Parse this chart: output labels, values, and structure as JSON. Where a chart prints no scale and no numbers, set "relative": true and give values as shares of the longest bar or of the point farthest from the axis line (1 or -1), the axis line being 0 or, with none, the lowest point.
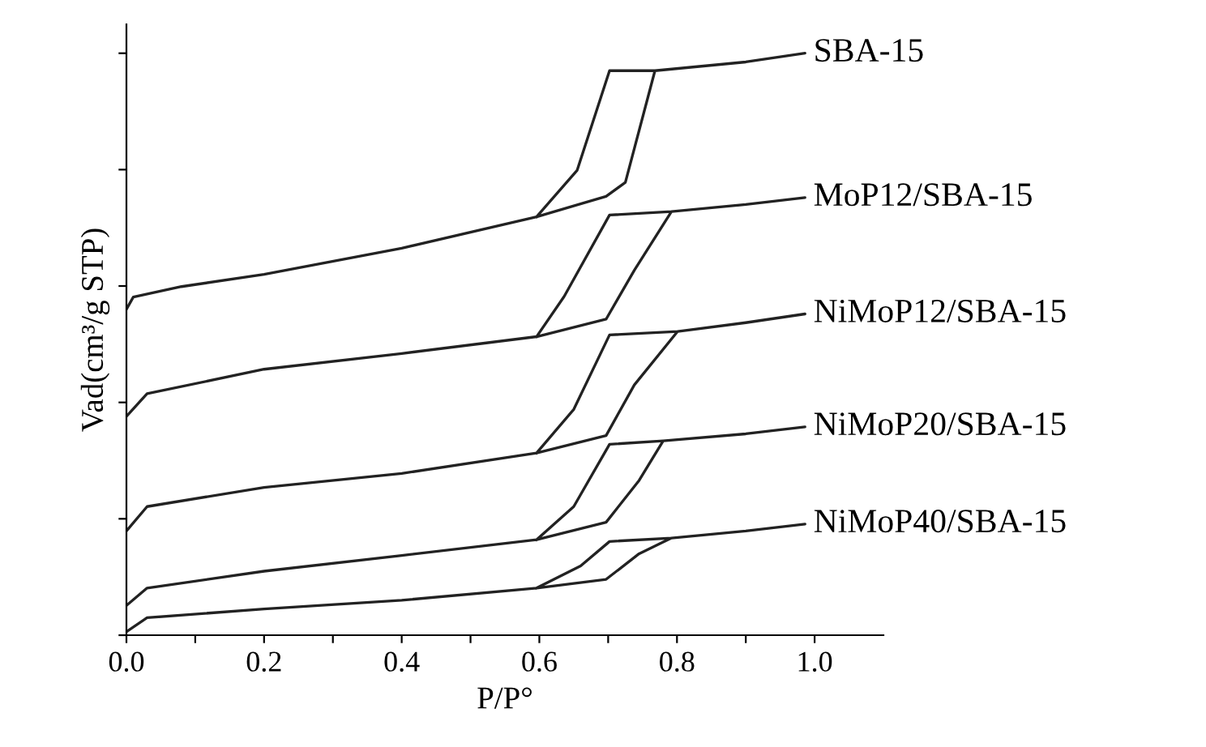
{
  "chart_data": {
    "type": "line",
    "relative": true,
    "xlabel": "P/P°",
    "ylabel": "Vad(cm³/g STP)",
    "xlim": [
      0,
      1.1
    ],
    "xticks": [
      {
        "value": 0,
        "label": "0.0"
      },
      {
        "value": 0.1,
        "label": null
      },
      {
        "value": 0.2,
        "label": "0.2"
      },
      {
        "value": 0.3,
        "label": null
      },
      {
        "value": 0.4,
        "label": "0.4"
      },
      {
        "value": 0.5,
        "label": null
      },
      {
        "value": 0.6,
        "label": "0.6"
      },
      {
        "value": 0.7,
        "label": null
      },
      {
        "value": 0.8,
        "label": "0.8"
      },
      {
        "value": 0.9,
        "label": null
      },
      {
        "value": 1.0,
        "label": "1.0"
      }
    ],
    "grid": false,
    "legend": false,
    "marker": "none",
    "line_style": "solid",
    "tick_labels": "x",
    "series": [
      {
        "name": "SBA-15",
        "color": "#222222",
        "x": [
          0,
          0.01,
          0.08,
          0.2,
          0.4,
          0.596,
          0.697,
          0.725,
          0.768,
          0.9,
          0.986,
          0.9,
          0.768,
          0.702,
          0.655,
          0.596
        ],
        "values": [
          0.56,
          0.581,
          0.599,
          0.62,
          0.665,
          0.719,
          0.754,
          0.778,
          0.97,
          0.985,
          1.0,
          0.985,
          0.97,
          0.97,
          0.799,
          0.719
        ]
      },
      {
        "name": "MoP12/SBA-15",
        "color": "#222222",
        "x": [
          0,
          0.03,
          0.2,
          0.4,
          0.596,
          0.697,
          0.738,
          0.792,
          0.9,
          0.986,
          0.9,
          0.792,
          0.702,
          0.636,
          0.596
        ],
        "values": [
          0.376,
          0.415,
          0.457,
          0.484,
          0.513,
          0.543,
          0.627,
          0.728,
          0.74,
          0.752,
          0.74,
          0.728,
          0.722,
          0.582,
          0.513
        ]
      },
      {
        "name": "NiMoP12/SBA-15",
        "color": "#222222",
        "x": [
          0,
          0.03,
          0.2,
          0.4,
          0.596,
          0.697,
          0.738,
          0.801,
          0.9,
          0.986,
          0.9,
          0.801,
          0.702,
          0.65,
          0.596
        ],
        "values": [
          0.179,
          0.221,
          0.254,
          0.278,
          0.313,
          0.343,
          0.43,
          0.522,
          0.537,
          0.552,
          0.537,
          0.522,
          0.516,
          0.388,
          0.313
        ]
      },
      {
        "name": "NiMoP20/SBA-15",
        "color": "#222222",
        "x": [
          0,
          0.03,
          0.2,
          0.4,
          0.596,
          0.697,
          0.745,
          0.78,
          0.9,
          0.986,
          0.9,
          0.78,
          0.702,
          0.65,
          0.596
        ],
        "values": [
          0.051,
          0.081,
          0.11,
          0.137,
          0.164,
          0.194,
          0.266,
          0.334,
          0.346,
          0.358,
          0.346,
          0.334,
          0.328,
          0.221,
          0.164
        ]
      },
      {
        "name": "NiMoP40/SBA-15",
        "color": "#222222",
        "x": [
          0,
          0.03,
          0.2,
          0.4,
          0.596,
          0.697,
          0.745,
          0.792,
          0.9,
          0.986,
          0.9,
          0.792,
          0.702,
          0.66,
          0.596
        ],
        "values": [
          0.006,
          0.03,
          0.045,
          0.06,
          0.081,
          0.096,
          0.14,
          0.167,
          0.179,
          0.191,
          0.179,
          0.167,
          0.161,
          0.119,
          0.081
        ]
      }
    ]
  }
}
